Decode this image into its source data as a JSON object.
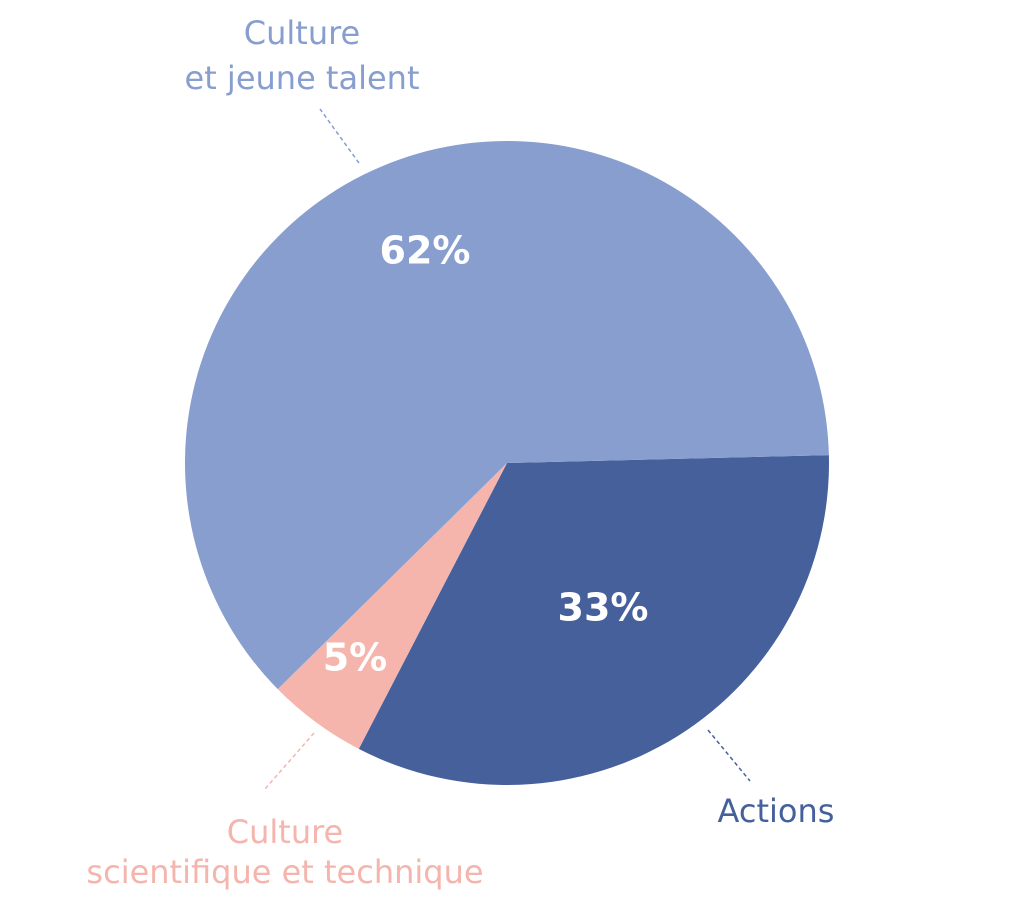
{
  "chart_data": {
    "type": "pie",
    "start": "3 o'clock, clockwise",
    "slices": [
      {
        "name": "Actions",
        "label_lines": [
          "Actions"
        ],
        "value": 33,
        "value_label": "33%",
        "color": "#46609c"
      },
      {
        "name": "Culture scientifique et technique",
        "label_lines": [
          "Culture",
          "scientifique et technique"
        ],
        "value": 5,
        "value_label": "5%",
        "color": "#f5b5ad"
      },
      {
        "name": "Culture et jeune talent",
        "label_lines": [
          "Culture",
          "et jeune talent"
        ],
        "value": 62,
        "value_label": "62%",
        "color": "#879ecf"
      }
    ]
  }
}
